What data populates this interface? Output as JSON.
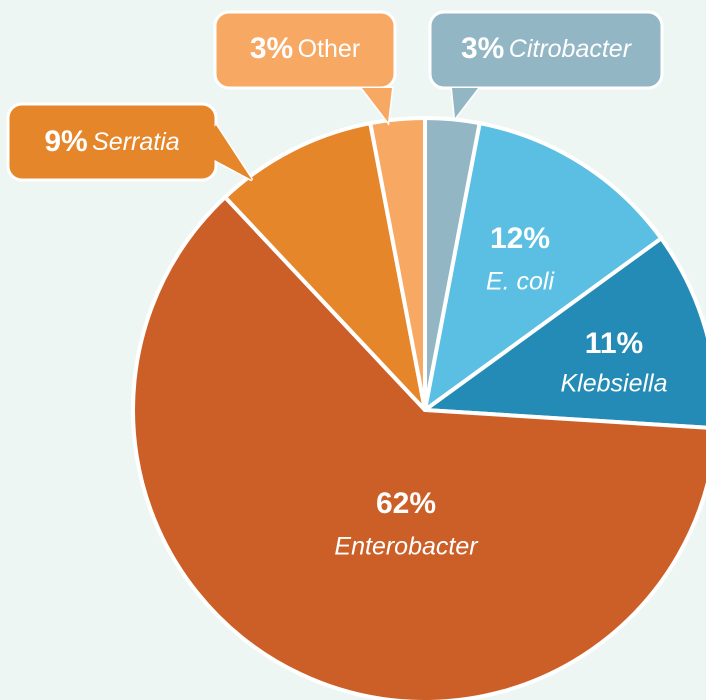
{
  "chart_data": {
    "type": "pie",
    "categories": [
      "Citrobacter",
      "E. coli",
      "Klebsiella",
      "Enterobacter",
      "Serratia",
      "Other"
    ],
    "values": [
      3,
      12,
      11,
      62,
      9,
      3
    ],
    "value_labels": [
      "3%",
      "12%",
      "11%",
      "62%",
      "9%",
      "3%"
    ],
    "colors": [
      "#93b6c4",
      "#5bbee3",
      "#238bb5",
      "#cc5f28",
      "#e5862b",
      "#f7a964"
    ]
  }
}
